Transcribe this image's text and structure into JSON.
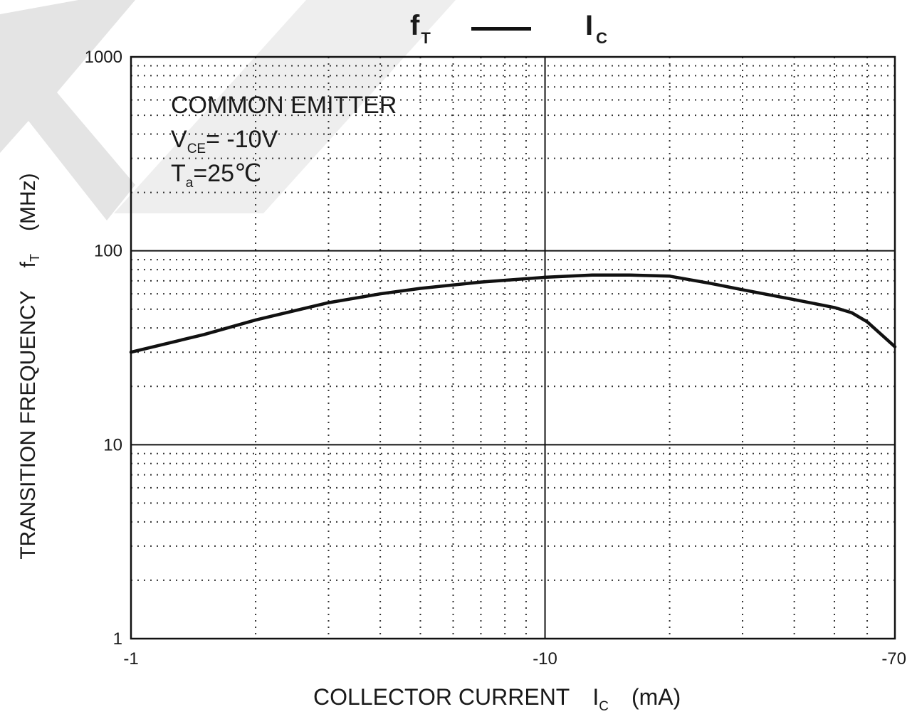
{
  "title": {
    "f_symbol": "f",
    "f_sub": "T",
    "i_symbol": "I",
    "i_sub": "C"
  },
  "annotation": {
    "line1": "COMMON EMITTER",
    "vce_main": "V",
    "vce_sub": "CE",
    "vce_value": "= -10V",
    "ta_main": "T",
    "ta_sub": "a",
    "ta_value": "=25℃"
  },
  "ylabel": {
    "text": "TRANSITION FREQUENCY",
    "symbol": "f",
    "symbol_sub": "T",
    "unit": "(MHz)"
  },
  "xlabel": {
    "text": "COLLECTOR CURRENT",
    "symbol": "I",
    "symbol_sub": "C",
    "unit": "(mA)"
  },
  "chart_data": {
    "type": "line",
    "x_scale": "log",
    "y_scale": "log",
    "xlim": [
      1,
      70
    ],
    "ylim": [
      1,
      1000
    ],
    "x_ticks": [
      {
        "value": 1,
        "label": "-1"
      },
      {
        "value": 10,
        "label": "-10"
      },
      {
        "value": 70,
        "label": "-70"
      }
    ],
    "y_ticks": [
      {
        "value": 1,
        "label": "1"
      },
      {
        "value": 10,
        "label": "10"
      },
      {
        "value": 100,
        "label": "100"
      },
      {
        "value": 1000,
        "label": "1000"
      }
    ],
    "x_minor_ticks": [
      2,
      3,
      4,
      5,
      6,
      7,
      8,
      9,
      20,
      30,
      40,
      50,
      60
    ],
    "y_minor_ticks": [
      2,
      3,
      4,
      5,
      6,
      7,
      8,
      9,
      20,
      30,
      40,
      50,
      60,
      70,
      80,
      90,
      200,
      300,
      400,
      500,
      600,
      700,
      800,
      900
    ],
    "grid": "dotted minor, solid major",
    "series": [
      {
        "x": [
          1,
          1.5,
          2,
          3,
          4,
          5,
          7,
          10,
          13,
          16,
          20,
          25,
          30,
          40,
          50,
          55,
          60,
          70
        ],
        "y": [
          30,
          37,
          44,
          54,
          60,
          64,
          69,
          73,
          75,
          75,
          74,
          68,
          63,
          56,
          51,
          48,
          43,
          32
        ]
      }
    ]
  }
}
